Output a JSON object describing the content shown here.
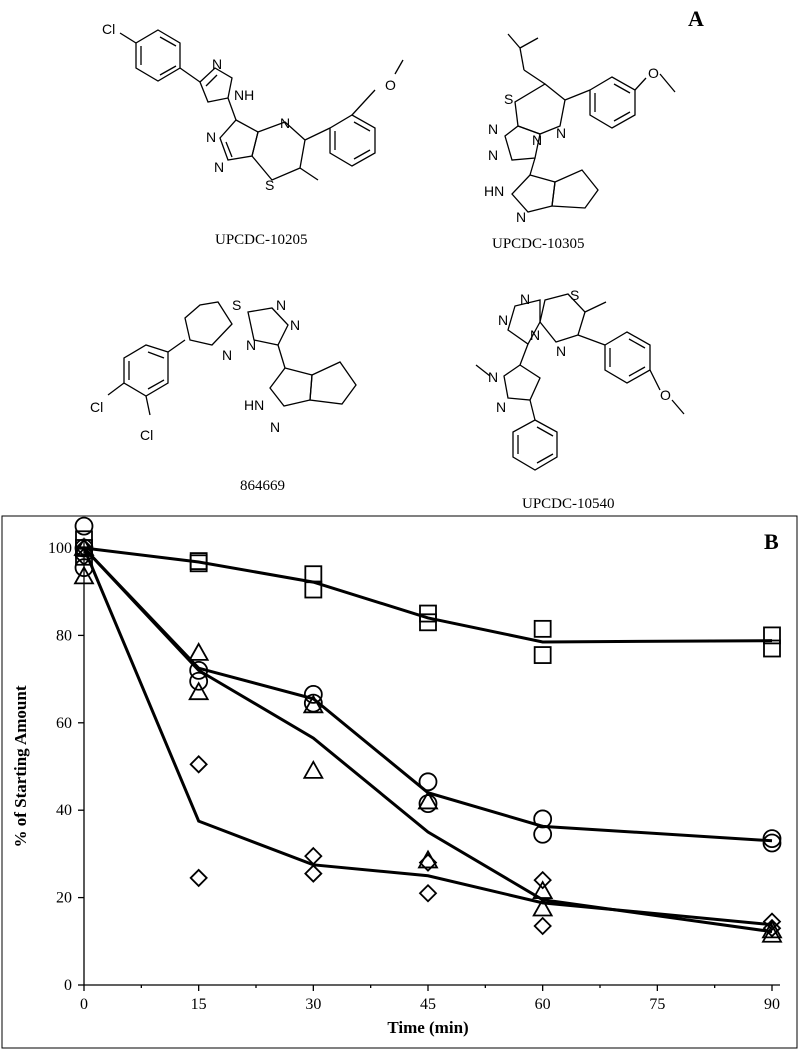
{
  "panel_a": {
    "letter": "A",
    "molecules": [
      {
        "id": "UPCDC-10205",
        "label": "UPCDC-10205"
      },
      {
        "id": "UPCDC-10305",
        "label": "UPCDC-10305"
      },
      {
        "id": "864669",
        "label": "864669"
      },
      {
        "id": "UPCDC-10540",
        "label": "UPCDC-10540"
      }
    ],
    "atoms": {
      "cl": "Cl",
      "nh": "NH",
      "hn": "HN",
      "n": "N",
      "s": "S",
      "o": "O"
    }
  },
  "chart_data": {
    "type": "scatter",
    "panel_letter": "B",
    "title": "",
    "xlabel": "Time (min)",
    "ylabel": "% of Starting Amount",
    "xlim": [
      0,
      90
    ],
    "ylim": [
      0,
      100
    ],
    "xticks": [
      0,
      15,
      30,
      45,
      60,
      75,
      90
    ],
    "yticks": [
      0,
      20,
      40,
      60,
      80,
      100
    ],
    "grid": false,
    "series": [
      {
        "marker": "square",
        "points": [
          [
            0,
            102
          ],
          [
            0,
            100
          ],
          [
            0,
            98
          ],
          [
            15,
            97
          ],
          [
            15,
            96.5
          ],
          [
            30,
            94
          ],
          [
            30,
            90.5
          ],
          [
            45,
            85
          ],
          [
            45,
            83
          ],
          [
            60,
            81.5
          ],
          [
            60,
            75.5
          ],
          [
            90,
            80
          ],
          [
            90,
            77
          ]
        ],
        "fit": [
          [
            0,
            100
          ],
          [
            15,
            96.8
          ],
          [
            30,
            92.2
          ],
          [
            45,
            84
          ],
          [
            60,
            78.5
          ],
          [
            90,
            78.8
          ]
        ]
      },
      {
        "marker": "circle",
        "points": [
          [
            0,
            105
          ],
          [
            0,
            100
          ],
          [
            0,
            95.5
          ],
          [
            15,
            69.5
          ],
          [
            15,
            72
          ],
          [
            30,
            66.5
          ],
          [
            30,
            64.5
          ],
          [
            45,
            46.5
          ],
          [
            45,
            41.5
          ],
          [
            60,
            38
          ],
          [
            60,
            34.5
          ],
          [
            90,
            33.5
          ],
          [
            90,
            32.5
          ]
        ],
        "fit": [
          [
            0,
            100
          ],
          [
            15,
            72.5
          ],
          [
            30,
            65.5
          ],
          [
            45,
            44
          ],
          [
            60,
            36.3
          ],
          [
            90,
            33
          ]
        ]
      },
      {
        "marker": "triangle",
        "points": [
          [
            0,
            93.5
          ],
          [
            0,
            100
          ],
          [
            15,
            76
          ],
          [
            15,
            67
          ],
          [
            30,
            64
          ],
          [
            30,
            49
          ],
          [
            45,
            42
          ],
          [
            45,
            28.5
          ],
          [
            60,
            21.5
          ],
          [
            60,
            17.5
          ],
          [
            90,
            12.5
          ],
          [
            90,
            11.5
          ]
        ],
        "fit": [
          [
            0,
            100
          ],
          [
            15,
            72
          ],
          [
            30,
            56.5
          ],
          [
            45,
            35
          ],
          [
            60,
            19.5
          ],
          [
            90,
            12.2
          ]
        ]
      },
      {
        "marker": "diamond",
        "points": [
          [
            0,
            100
          ],
          [
            0,
            98
          ],
          [
            15,
            50.5
          ],
          [
            15,
            24.5
          ],
          [
            30,
            29.5
          ],
          [
            30,
            25.5
          ],
          [
            45,
            28
          ],
          [
            45,
            21
          ],
          [
            60,
            24
          ],
          [
            60,
            13.5
          ],
          [
            90,
            14.5
          ],
          [
            90,
            13
          ]
        ],
        "fit": [
          [
            0,
            100
          ],
          [
            15,
            37.5
          ],
          [
            30,
            27.5
          ],
          [
            45,
            25
          ],
          [
            60,
            18.8
          ],
          [
            90,
            13.8
          ]
        ]
      }
    ]
  }
}
